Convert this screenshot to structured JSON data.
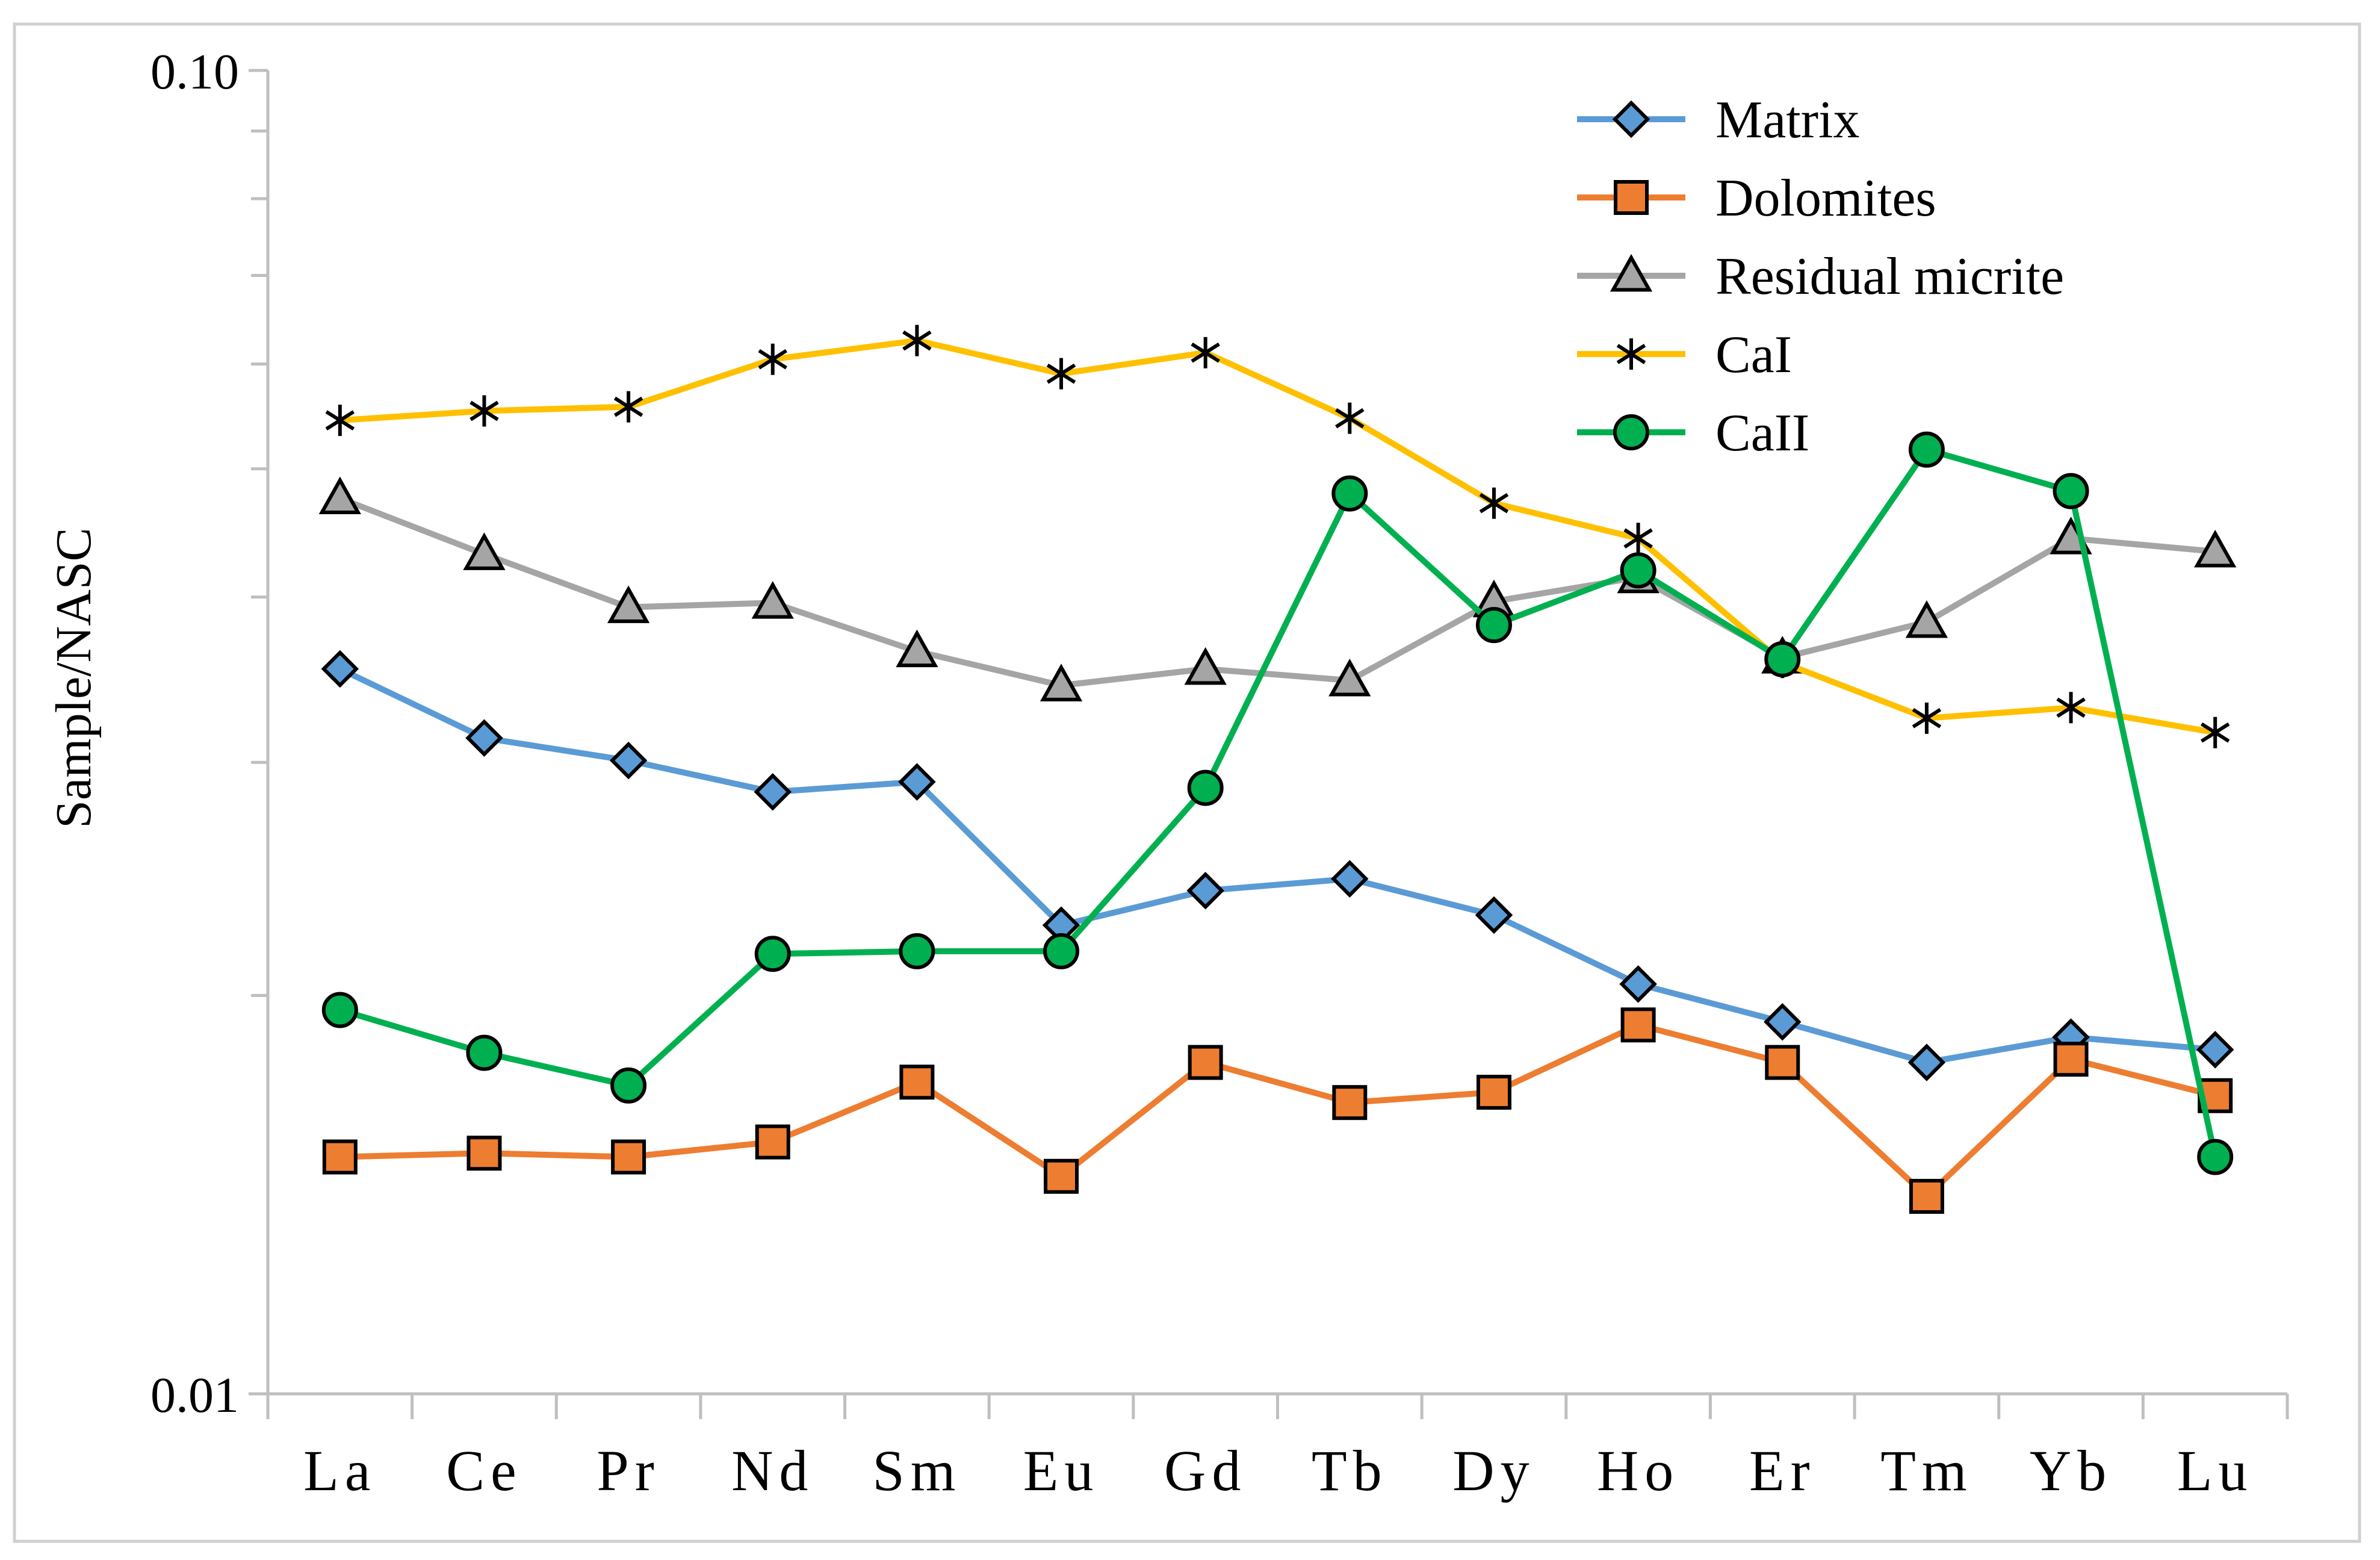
{
  "chart_data": {
    "type": "line",
    "title": "",
    "xlabel": "",
    "ylabel": "Sample/NASC",
    "yscale": "log",
    "ylim": [
      0.01,
      0.1
    ],
    "yticks": [
      "0.10",
      "0.01"
    ],
    "grid": false,
    "legend_position": "top-right",
    "categories": [
      "La",
      "Ce",
      "Pr",
      "Nd",
      "Sm",
      "Eu",
      "Gd",
      "Tb",
      "Dy",
      "Ho",
      "Er",
      "Tm",
      "Yb",
      "Lu"
    ],
    "series": [
      {
        "name": "Matrix",
        "color": "#5b9bd5",
        "marker": "diamond",
        "values": [
          0.0353,
          0.0313,
          0.0301,
          0.0285,
          0.029,
          0.0226,
          0.024,
          0.0245,
          0.023,
          0.0204,
          0.0191,
          0.0178,
          0.0186,
          0.0182
        ]
      },
      {
        "name": "Dolomites",
        "color": "#ed7d31",
        "marker": "square",
        "values": [
          0.0151,
          0.0152,
          0.0151,
          0.0155,
          0.0172,
          0.0146,
          0.0178,
          0.0166,
          0.0169,
          0.019,
          0.0178,
          0.0141,
          0.0179,
          0.0168
        ]
      },
      {
        "name": "Residual micrite",
        "color": "#a5a5a5",
        "marker": "triangle",
        "values": [
          0.0475,
          0.0431,
          0.0393,
          0.0396,
          0.0364,
          0.0343,
          0.0353,
          0.0346,
          0.0397,
          0.0414,
          0.036,
          0.0383,
          0.0443,
          0.0433
        ]
      },
      {
        "name": "CaI",
        "color": "#ffc000",
        "marker": "star",
        "values": [
          0.0544,
          0.0553,
          0.0557,
          0.0605,
          0.0625,
          0.059,
          0.0612,
          0.0546,
          0.0471,
          0.0443,
          0.0357,
          0.0324,
          0.033,
          0.0316
        ]
      },
      {
        "name": "CaII",
        "color": "#00b050",
        "marker": "circle",
        "values": [
          0.0195,
          0.0181,
          0.0171,
          0.0215,
          0.0216,
          0.0216,
          0.0287,
          0.0479,
          0.0381,
          0.0419,
          0.0359,
          0.0517,
          0.0481,
          0.0151
        ]
      }
    ]
  }
}
